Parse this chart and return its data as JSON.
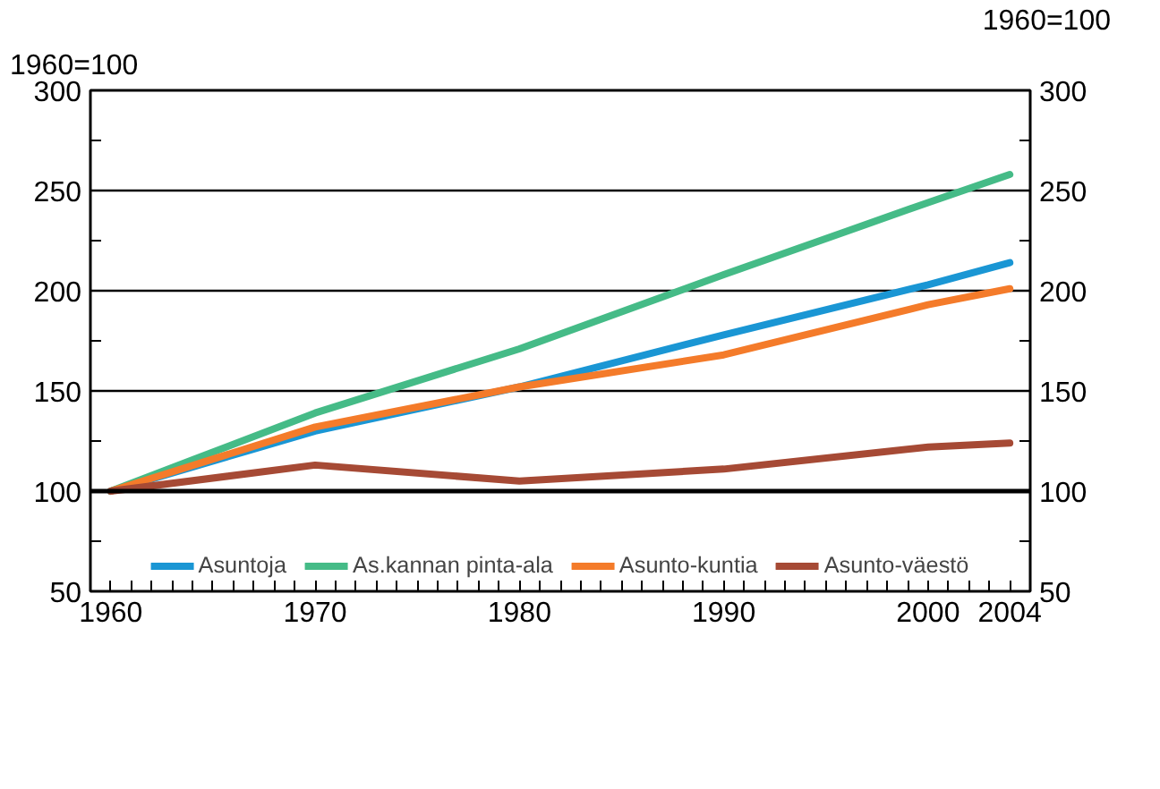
{
  "chart_data": {
    "type": "line",
    "ylabel": "1960=100",
    "y2label": "1960=100",
    "x": [
      1960,
      1970,
      1980,
      1990,
      2000,
      2004
    ],
    "xlim": [
      1959,
      2005
    ],
    "xticks": [
      1960,
      {
        "value": 1961,
        "label": null
      },
      {
        "value": 1962,
        "label": null
      },
      {
        "value": 1963,
        "label": null
      },
      {
        "value": 1964,
        "label": null
      },
      {
        "value": 1965,
        "label": null
      },
      {
        "value": 1966,
        "label": null
      },
      {
        "value": 1967,
        "label": null
      },
      {
        "value": 1968,
        "label": null
      },
      {
        "value": 1969,
        "label": null
      },
      1970,
      {
        "value": 1971,
        "label": null
      },
      {
        "value": 1972,
        "label": null
      },
      {
        "value": 1973,
        "label": null
      },
      {
        "value": 1974,
        "label": null
      },
      {
        "value": 1975,
        "label": null
      },
      {
        "value": 1976,
        "label": null
      },
      {
        "value": 1977,
        "label": null
      },
      {
        "value": 1978,
        "label": null
      },
      {
        "value": 1979,
        "label": null
      },
      1980,
      {
        "value": 1981,
        "label": null
      },
      {
        "value": 1982,
        "label": null
      },
      {
        "value": 1983,
        "label": null
      },
      {
        "value": 1984,
        "label": null
      },
      {
        "value": 1985,
        "label": null
      },
      {
        "value": 1986,
        "label": null
      },
      {
        "value": 1987,
        "label": null
      },
      {
        "value": 1988,
        "label": null
      },
      {
        "value": 1989,
        "label": null
      },
      1990,
      {
        "value": 1991,
        "label": null
      },
      {
        "value": 1992,
        "label": null
      },
      {
        "value": 1993,
        "label": null
      },
      {
        "value": 1994,
        "label": null
      },
      {
        "value": 1995,
        "label": null
      },
      {
        "value": 1996,
        "label": null
      },
      {
        "value": 1997,
        "label": null
      },
      {
        "value": 1998,
        "label": null
      },
      {
        "value": 1999,
        "label": null
      },
      2000,
      {
        "value": 2001,
        "label": null
      },
      {
        "value": 2002,
        "label": null
      },
      {
        "value": 2003,
        "label": null
      },
      2004
    ],
    "ylim": [
      50,
      300
    ],
    "yticks": [
      50,
      {
        "value": 75,
        "label": null
      },
      100,
      {
        "value": 125,
        "label": null
      },
      150,
      {
        "value": 175,
        "label": null
      },
      200,
      {
        "value": 225,
        "label": null
      },
      250,
      {
        "value": 275,
        "label": null
      },
      300
    ],
    "y2lim": [
      50,
      300
    ],
    "y2ticks": [
      50,
      {
        "value": 75,
        "label": null
      },
      100,
      {
        "value": 125,
        "label": null
      },
      150,
      {
        "value": 175,
        "label": null
      },
      200,
      {
        "value": 225,
        "label": null
      },
      250,
      {
        "value": 275,
        "label": null
      },
      300
    ],
    "grid": "y",
    "ref_lines": [
      {
        "axis": "y",
        "value": 100,
        "color": "#000000"
      }
    ],
    "legend": "bottom",
    "series": [
      {
        "name": "Asuntoja",
        "color": "#1a96d4",
        "values": [
          100,
          130,
          152,
          178,
          203,
          214
        ]
      },
      {
        "name": "As.kannan pinta-ala",
        "color": "#45bb87",
        "values": [
          100,
          139,
          171,
          208,
          244,
          258
        ]
      },
      {
        "name": "Asunto-kuntia",
        "color": "#f47b2a",
        "values": [
          100,
          132,
          152,
          168,
          193,
          201
        ]
      },
      {
        "name": "Asunto-väestö",
        "color": "#a64a35",
        "values": [
          100,
          113,
          105,
          111,
          122,
          124
        ]
      }
    ]
  }
}
